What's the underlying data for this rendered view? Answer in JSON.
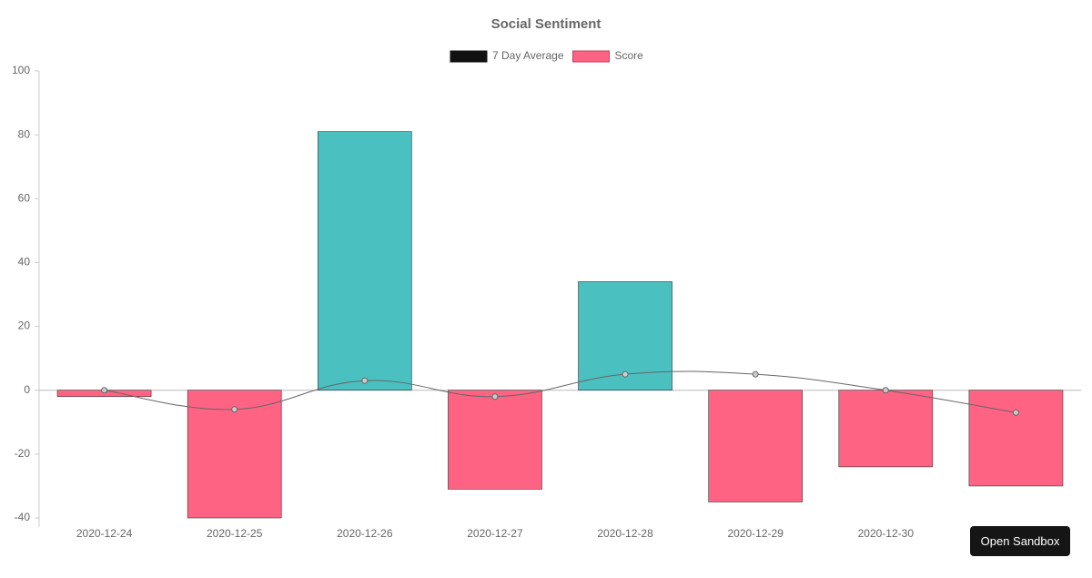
{
  "chart_data": {
    "type": "bar",
    "title": "Social Sentiment",
    "categories": [
      "2020-12-24",
      "2020-12-25",
      "2020-12-26",
      "2020-12-27",
      "2020-12-28",
      "2020-12-29",
      "2020-12-30",
      null
    ],
    "series": [
      {
        "name": "7 Day Average",
        "type": "line",
        "color": "#111111",
        "line_color": "#666666",
        "point_color": "#cccccc",
        "values": [
          0,
          -6,
          3,
          -2,
          5,
          5,
          0,
          -7
        ]
      },
      {
        "name": "Score",
        "type": "bar",
        "color": "#ff6384",
        "colors": [
          "#ff6384",
          "#ff6384",
          "#4bc0c0",
          "#ff6384",
          "#4bc0c0",
          "#ff6384",
          "#ff6384",
          "#ff6384"
        ],
        "values": [
          -2,
          -40,
          81,
          -31,
          34,
          -35,
          -24,
          -30
        ]
      }
    ],
    "ylim": [
      -40,
      100
    ],
    "yticks": [
      -40,
      -20,
      0,
      20,
      40,
      60,
      80,
      100
    ],
    "legend": "top"
  },
  "ui": {
    "button": "Open Sandbox"
  }
}
